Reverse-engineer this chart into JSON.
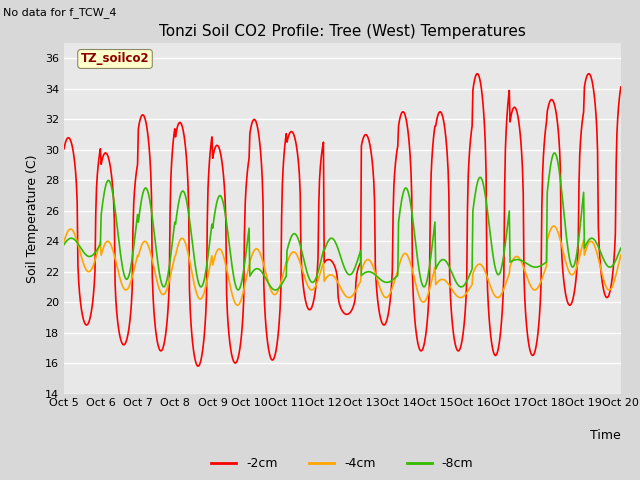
{
  "title": "Tonzi Soil CO2 Profile: Tree (West) Temperatures",
  "subtitle": "No data for f_TCW_4",
  "ylabel": "Soil Temperature (C)",
  "xlabel": "Time",
  "ylim": [
    14,
    37
  ],
  "yticks": [
    14,
    16,
    18,
    20,
    22,
    24,
    26,
    28,
    30,
    32,
    34,
    36
  ],
  "xtick_labels": [
    "Oct 5",
    "Oct 6",
    "Oct 7",
    "Oct 8",
    "Oct 9",
    "Oct 10",
    "Oct 11",
    "Oct 12",
    "Oct 13",
    "Oct 14",
    "Oct 15",
    "Oct 16",
    "Oct 17",
    "Oct 18",
    "Oct 19",
    "Oct 20"
  ],
  "legend_box_label": "TZ_soilco2",
  "legend_box_color": "#ffffcc",
  "legend_box_text_color": "#8b0000",
  "series_colors": [
    "#ff0000",
    "#ffa500",
    "#33bb00"
  ],
  "series_labels": [
    "-2cm",
    "-4cm",
    "-8cm"
  ],
  "bg_color": "#d8d8d8",
  "plot_bg_color": "#e8e8e8",
  "grid_color": "#ffffff",
  "line_width": 1.2,
  "title_fontsize": 11,
  "tick_fontsize": 8,
  "ylabel_fontsize": 9
}
